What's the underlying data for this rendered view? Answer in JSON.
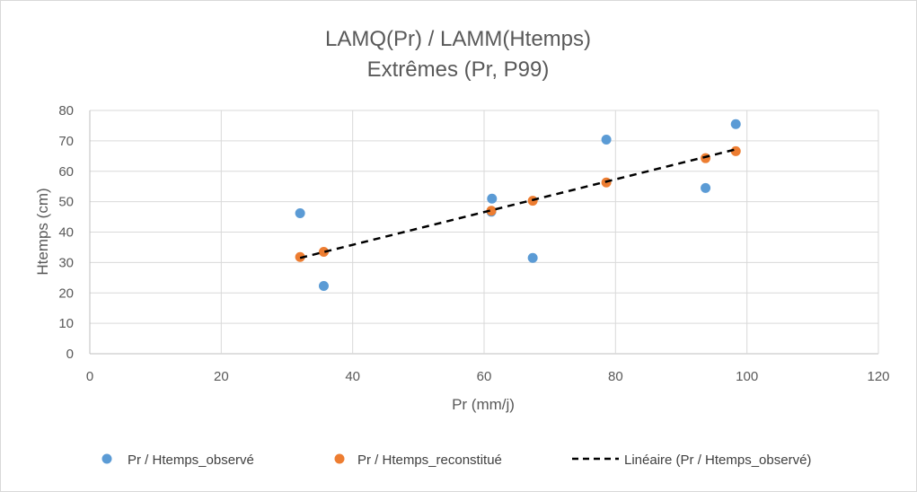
{
  "chart_data": {
    "type": "scatter",
    "title": "LAMQ(Pr) / LAMM(Htemps)",
    "subtitle": "Extrêmes (Pr, P99)",
    "xlabel": "Pr (mm/j)",
    "ylabel": "Htemps (cm)",
    "xlim": [
      0,
      120
    ],
    "ylim": [
      0,
      80
    ],
    "x_ticks": [
      "0",
      "20",
      "40",
      "60",
      "80",
      "100",
      "120"
    ],
    "y_ticks": [
      "0",
      "10",
      "20",
      "30",
      "40",
      "50",
      "60",
      "70",
      "80"
    ],
    "grid": true,
    "legend_position": "bottom",
    "series": [
      {
        "name": "Pr / Htemps_observé",
        "kind": "scatter",
        "color": "#5b9bd5",
        "points": [
          {
            "x": 32.0,
            "y": 46.2
          },
          {
            "x": 35.6,
            "y": 22.3
          },
          {
            "x": 61.1,
            "y": 46.7
          },
          {
            "x": 61.2,
            "y": 51.0
          },
          {
            "x": 67.4,
            "y": 31.5
          },
          {
            "x": 78.6,
            "y": 70.4
          },
          {
            "x": 93.7,
            "y": 54.5
          },
          {
            "x": 98.3,
            "y": 75.5
          }
        ]
      },
      {
        "name": "Pr / Htemps_reconstitué",
        "kind": "scatter",
        "color": "#ed7d31",
        "points": [
          {
            "x": 32.0,
            "y": 31.8
          },
          {
            "x": 35.6,
            "y": 33.5
          },
          {
            "x": 61.1,
            "y": 47.0
          },
          {
            "x": 67.4,
            "y": 50.3
          },
          {
            "x": 78.6,
            "y": 56.3
          },
          {
            "x": 93.7,
            "y": 64.3
          },
          {
            "x": 98.3,
            "y": 66.6
          }
        ]
      },
      {
        "name": "Linéaire  (Pr / Htemps_observé)",
        "kind": "trendline",
        "color": "#000000",
        "points": [
          {
            "x": 32.0,
            "y": 31.5
          },
          {
            "x": 98.3,
            "y": 67.2
          }
        ]
      }
    ]
  }
}
